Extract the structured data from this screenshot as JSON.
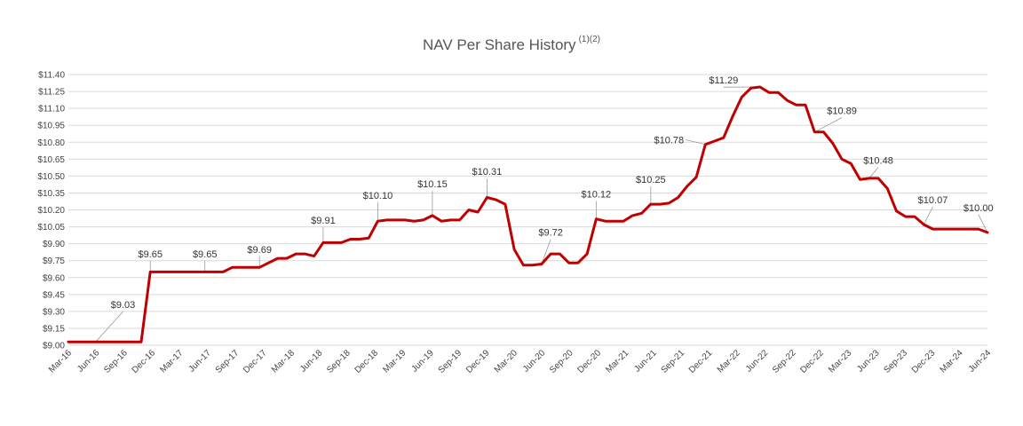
{
  "chart_data": {
    "type": "line",
    "title": "NAV Per Share History",
    "title_superscript": "(1)(2)",
    "xlabel": "",
    "ylabel": "",
    "ylim": [
      9.0,
      11.4
    ],
    "y_ticks": [
      "$9.00",
      "$9.15",
      "$9.30",
      "$9.45",
      "$9.60",
      "$9.75",
      "$9.90",
      "$10.05",
      "$10.20",
      "$10.35",
      "$10.50",
      "$10.65",
      "$10.80",
      "$10.95",
      "$11.10",
      "$11.25",
      "$11.40"
    ],
    "x_ticks": [
      "Mar-16",
      "Jun-16",
      "Sep-16",
      "Dec-16",
      "Mar-17",
      "Jun-17",
      "Sep-17",
      "Dec-17",
      "Mar-18",
      "Jun-18",
      "Sep-18",
      "Dec-18",
      "Mar-19",
      "Jun-19",
      "Sep-19",
      "Dec-19",
      "Mar-20",
      "Jun-20",
      "Sep-20",
      "Dec-20",
      "Mar-21",
      "Jun-21",
      "Sep-21",
      "Dec-21",
      "Mar-22",
      "Jun-22",
      "Sep-22",
      "Dec-22",
      "Mar-23",
      "Jun-23",
      "Sep-23",
      "Dec-23",
      "Mar-24",
      "Jun-24"
    ],
    "line_color": "#c00000",
    "series": [
      {
        "name": "NAV per share",
        "values": [
          9.03,
          9.03,
          9.03,
          9.03,
          9.03,
          9.03,
          9.03,
          9.03,
          9.03,
          9.65,
          9.65,
          9.65,
          9.65,
          9.65,
          9.65,
          9.65,
          9.65,
          9.65,
          9.69,
          9.69,
          9.69,
          9.69,
          9.73,
          9.77,
          9.77,
          9.81,
          9.81,
          9.79,
          9.91,
          9.91,
          9.91,
          9.94,
          9.94,
          9.95,
          10.1,
          10.11,
          10.11,
          10.11,
          10.1,
          10.11,
          10.15,
          10.1,
          10.11,
          10.11,
          10.2,
          10.18,
          10.31,
          10.29,
          10.25,
          9.85,
          9.71,
          9.71,
          9.72,
          9.81,
          9.81,
          9.73,
          9.73,
          9.81,
          10.12,
          10.1,
          10.1,
          10.1,
          10.15,
          10.17,
          10.25,
          10.25,
          10.26,
          10.31,
          10.41,
          10.49,
          10.78,
          10.81,
          10.84,
          11.03,
          11.2,
          11.28,
          11.29,
          11.24,
          11.24,
          11.17,
          11.13,
          11.13,
          10.89,
          10.89,
          10.79,
          10.65,
          10.61,
          10.47,
          10.48,
          10.48,
          10.39,
          10.19,
          10.14,
          10.14,
          10.07,
          10.03,
          10.03,
          10.03,
          10.03,
          10.03,
          10.03,
          10.0
        ]
      }
    ],
    "annotations": [
      {
        "index": 3,
        "label": "$9.03",
        "lx": 6,
        "ly": 9.33
      },
      {
        "index": 9,
        "label": "$9.65",
        "lx": 9,
        "ly": 9.78
      },
      {
        "index": 15,
        "label": "$9.65",
        "lx": 15,
        "ly": 9.78
      },
      {
        "index": 21,
        "label": "$9.69",
        "lx": 21,
        "ly": 9.82
      },
      {
        "index": 28,
        "label": "$9.91",
        "lx": 28,
        "ly": 10.08
      },
      {
        "index": 34,
        "label": "$10.10",
        "lx": 34,
        "ly": 10.3
      },
      {
        "index": 40,
        "label": "$10.15",
        "lx": 40,
        "ly": 10.4
      },
      {
        "index": 46,
        "label": "$10.31",
        "lx": 46,
        "ly": 10.51
      },
      {
        "index": 52,
        "label": "$9.72",
        "lx": 53,
        "ly": 9.97
      },
      {
        "index": 58,
        "label": "$10.12",
        "lx": 58,
        "ly": 10.31
      },
      {
        "index": 64,
        "label": "$10.25",
        "lx": 64,
        "ly": 10.44
      },
      {
        "index": 70,
        "label": "$10.78",
        "lx": 66,
        "ly": 10.79
      },
      {
        "index": 76,
        "label": "$11.29",
        "lx": 72,
        "ly": 11.32
      },
      {
        "index": 82,
        "label": "$10.89",
        "lx": 85,
        "ly": 11.05
      },
      {
        "index": 88,
        "label": "$10.48",
        "lx": 89,
        "ly": 10.61
      },
      {
        "index": 94,
        "label": "$10.07",
        "lx": 95,
        "ly": 10.26
      },
      {
        "index": 101,
        "label": "$10.00",
        "lx": 100,
        "ly": 10.19
      }
    ]
  }
}
